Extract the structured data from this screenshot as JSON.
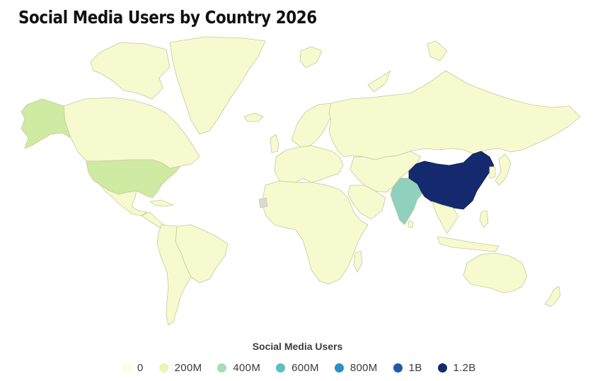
{
  "title": "Social Media Users by Country 2026",
  "legend": {
    "title": "Social Media Users",
    "items": [
      {
        "label": "0",
        "color": "#fdfde0"
      },
      {
        "label": "200M",
        "color": "#e8f5b5"
      },
      {
        "label": "400M",
        "color": "#a9dcb4"
      },
      {
        "label": "600M",
        "color": "#5dbfbe"
      },
      {
        "label": "800M",
        "color": "#2990c6"
      },
      {
        "label": "1B",
        "color": "#2359a6"
      },
      {
        "label": "1.2B",
        "color": "#152a6e"
      }
    ]
  },
  "map": {
    "colors": {
      "low": "#f7f9cf",
      "lowStroke": "#c8ca9c",
      "usa": "#cfeaa2",
      "alaska": "#cfeaa2",
      "india": "#8fd1bd",
      "china": "#152a6e",
      "nodata": "#d9d9d9"
    }
  }
}
